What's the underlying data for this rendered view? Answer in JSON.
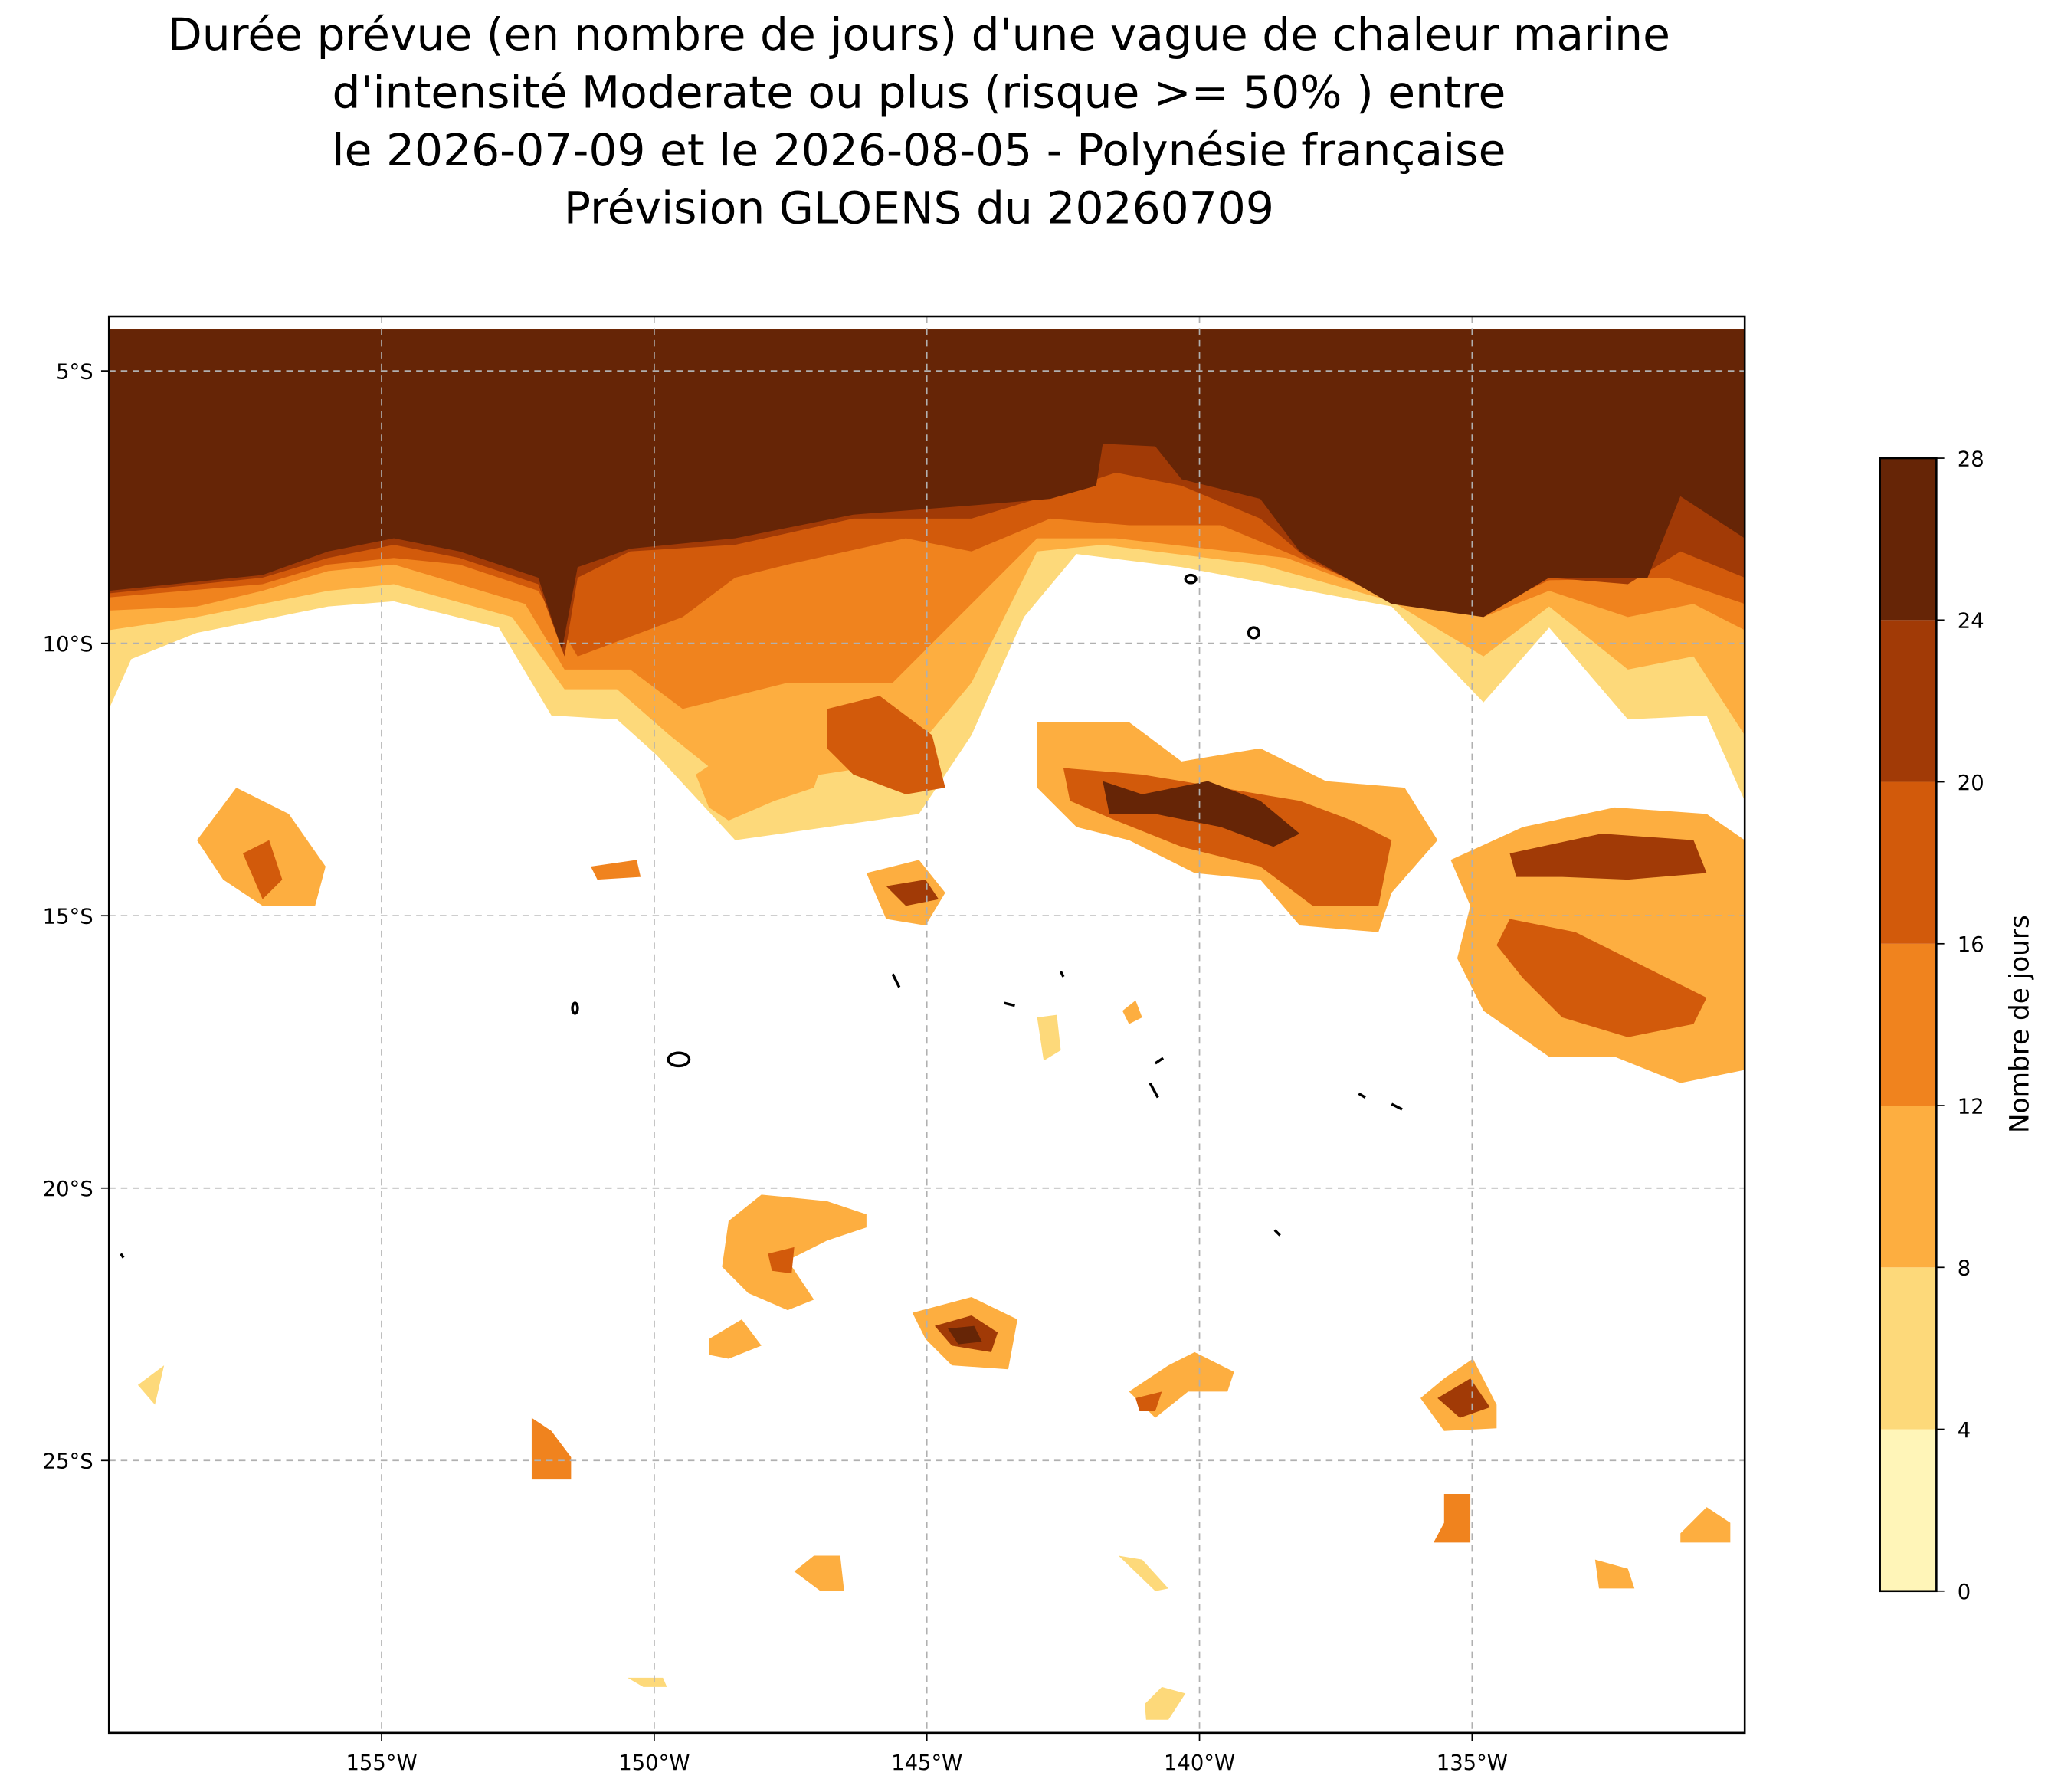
{
  "chart_data": {
    "type": "filled-contour-map",
    "title": [
      "Durée prévue (en nombre de jours) d'une vague de chaleur marine",
      "d'intensité Moderate ou plus (risque >= 50% ) entre",
      "le 2026-07-09 et le 2026-08-05 - Polynésie française",
      "Prévision GLOENS du 20260709"
    ],
    "xlim": [
      -160,
      -130
    ],
    "ylim": [
      -30,
      -4
    ],
    "xticks": [
      {
        "value": -155,
        "label": "155°W"
      },
      {
        "value": -150,
        "label": "150°W"
      },
      {
        "value": -145,
        "label": "145°W"
      },
      {
        "value": -140,
        "label": "140°W"
      },
      {
        "value": -135,
        "label": "135°W"
      }
    ],
    "yticks": [
      {
        "value": -5,
        "label": "5°S"
      },
      {
        "value": -10,
        "label": "10°S"
      },
      {
        "value": -15,
        "label": "15°S"
      },
      {
        "value": -20,
        "label": "20°S"
      },
      {
        "value": -25,
        "label": "25°S"
      }
    ],
    "grid": true,
    "colorbar": {
      "label": "Nombre de jours",
      "levels": [
        0,
        4,
        8,
        12,
        16,
        20,
        24,
        28
      ],
      "colors": [
        "#fff5b8",
        "#fdd97a",
        "#fdae40",
        "#f0831e",
        "#d25a0b",
        "#a13a06",
        "#662506"
      ]
    }
  }
}
